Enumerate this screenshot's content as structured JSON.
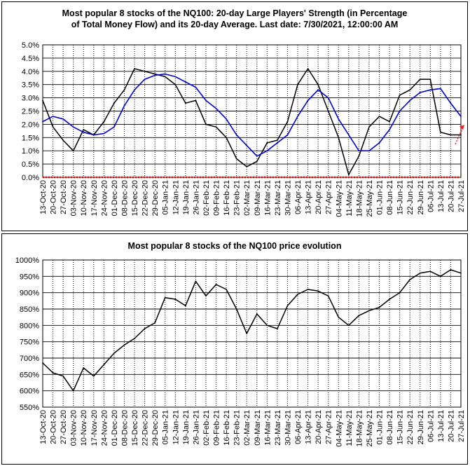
{
  "charts": [
    {
      "title_line1": "Most popular 8 stocks of the NQ100: 20-day Large Players' Strength (in Percentage",
      "title_line2": "of Total Money Flow) and its 20-day Average. Last date: 7/30/2021, 12:00:00 AM"
    },
    {
      "title": "Most popular 8 stocks of the NQ100 price evolution"
    }
  ],
  "colors": {
    "strength": "#000000",
    "average": "#0000cc",
    "zero_line": "#ee0000",
    "arrow": "#ee2222"
  },
  "chart_data": [
    {
      "type": "line",
      "title": "Most popular 8 stocks of the NQ100: 20-day Large Players' Strength (in Percentage of Total Money Flow) and its 20-day Average. Last date: 7/30/2021, 12:00:00 AM",
      "xlabel": "",
      "ylabel": "",
      "ylim": [
        0,
        5
      ],
      "y_ticks": [
        "0.0%",
        "0.5%",
        "1.0%",
        "1.5%",
        "2.0%",
        "2.5%",
        "3.0%",
        "3.5%",
        "4.0%",
        "4.5%",
        "5.0%"
      ],
      "y_unit": "%",
      "grid": true,
      "categories": [
        "13-Oct-20",
        "20-Oct-20",
        "27-Oct-20",
        "03-Nov-20",
        "10-Nov-20",
        "17-Nov-20",
        "24-Nov-20",
        "01-Dec-20",
        "08-Dec-20",
        "15-Dec-20",
        "22-Dec-20",
        "29-Dec-20",
        "05-Jan-21",
        "12-Jan-21",
        "19-Jan-21",
        "26-Jan-21",
        "02-Feb-21",
        "09-Feb-21",
        "16-Feb-21",
        "23-Feb-21",
        "02-Mar-21",
        "09-Mar-21",
        "16-Mar-21",
        "23-Mar-21",
        "30-Mar-21",
        "06-Apr-21",
        "13-Apr-21",
        "20-Apr-21",
        "27-Apr-21",
        "04-May-21",
        "11-May-21",
        "18-May-21",
        "25-May-21",
        "01-Jun-21",
        "08-Jun-21",
        "15-Jun-21",
        "22-Jun-21",
        "29-Jun-21",
        "06-Jul-21",
        "13-Jul-21",
        "20-Jul-21",
        "27-Jul-21"
      ],
      "tick_labels": [
        "13-Oct-20",
        "20-Oct-20",
        "27-Oct-20",
        "03-Nov-20",
        "10-Nov-20",
        "17-Nov-20",
        "24-Nov-20",
        "01-Dec-20",
        "08-Dec-20",
        "15-Dec-20",
        "22-Dec-20",
        "29-Dec-20",
        "05-Jan-21",
        "12-Jan-21",
        "19-Jan-21",
        "26-Jan-21",
        "02-Feb-21",
        "09-Feb-21",
        "16-Feb-21",
        "23-Feb-21",
        "02-Mar-21",
        "09-Mar-21",
        "16-Mar-21",
        "23-Mar-21",
        "30-Mar-21",
        "06-Apr-21",
        "13-Apr-21",
        "20-Apr-21",
        "27-Apr-21",
        "04-May-21",
        "11-May-21",
        "18-May-21",
        "25-May-21",
        "01-Jun-21",
        "08-Jun-21",
        "15-Jun-21",
        "22-Jun-21",
        "29-Jun-21",
        "06-Jul-21",
        "13-Jul-21",
        "20-Jul-21",
        "27-Jul-21"
      ],
      "series": [
        {
          "values": [
            2.9,
            1.9,
            1.4,
            1.0,
            1.8,
            1.6,
            2.1,
            2.8,
            3.3,
            4.1,
            4.0,
            3.9,
            3.8,
            3.5,
            2.8,
            2.9,
            2.0,
            1.9,
            1.5,
            0.7,
            0.4,
            0.6,
            1.3,
            1.4,
            2.1,
            3.5,
            4.1,
            3.5,
            2.5,
            1.5,
            0.1,
            0.8,
            1.9,
            2.3,
            2.1,
            3.1,
            3.3,
            3.7,
            3.7,
            1.7,
            1.6,
            1.6
          ]
        },
        {
          "values": [
            2.1,
            2.3,
            2.2,
            1.9,
            1.7,
            1.6,
            1.65,
            1.9,
            2.7,
            3.3,
            3.7,
            3.85,
            3.9,
            3.8,
            3.6,
            3.4,
            2.9,
            2.6,
            2.2,
            1.6,
            1.2,
            0.8,
            1.0,
            1.3,
            1.6,
            2.3,
            2.9,
            3.3,
            3.0,
            2.2,
            1.6,
            1.0,
            1.0,
            1.3,
            1.8,
            2.5,
            2.9,
            3.2,
            3.3,
            3.35,
            2.8,
            2.3
          ]
        }
      ]
    },
    {
      "type": "line",
      "title": "Most popular 8 stocks of the NQ100 price evolution",
      "xlabel": "",
      "ylabel": "",
      "ylim": [
        550,
        1000
      ],
      "y_ticks": [
        "550%",
        "600%",
        "650%",
        "700%",
        "750%",
        "800%",
        "850%",
        "900%",
        "950%",
        "1000%"
      ],
      "y_unit": "%",
      "grid": true,
      "categories": [
        "13-Oct-20",
        "20-Oct-20",
        "27-Oct-20",
        "03-Nov-20",
        "10-Nov-20",
        "17-Nov-20",
        "24-Nov-20",
        "01-Dec-20",
        "08-Dec-20",
        "15-Dec-20",
        "22-Dec-20",
        "29-Dec-20",
        "05-Jan-21",
        "12-Jan-21",
        "19-Jan-21",
        "26-Jan-21",
        "02-Feb-21",
        "09-Feb-21",
        "16-Feb-21",
        "23-Feb-21",
        "02-Mar-21",
        "09-Mar-21",
        "16-Mar-21",
        "23-Mar-21",
        "30-Mar-21",
        "06-Apr-21",
        "13-Apr-21",
        "20-Apr-21",
        "27-Apr-21",
        "04-May-21",
        "11-May-21",
        "18-May-21",
        "25-May-21",
        "01-Jun-21",
        "08-Jun-21",
        "15-Jun-21",
        "22-Jun-21",
        "29-Jun-21",
        "06-Jul-21",
        "13-Jul-21",
        "20-Jul-21",
        "27-Jul-21"
      ],
      "tick_labels": [
        "13-Oct-20",
        "20-Oct-20",
        "27-Oct-20",
        "03-Nov-20",
        "10-Nov-20",
        "17-Nov-20",
        "24-Nov-20",
        "01-Dec-20",
        "08-Dec-20",
        "15-Dec-20",
        "22-Dec-20",
        "29-Dec-20",
        "05-Jan-21",
        "12-Jan-21",
        "19-Jan-21",
        "26-Jan-21",
        "02-Feb-21",
        "09-Feb-21",
        "16-Feb-21",
        "23-Feb-21",
        "02-Mar-21",
        "09-Mar-21",
        "16-Mar-21",
        "23-Mar-21",
        "30-Mar-21",
        "06-Apr-21",
        "13-Apr-21",
        "20-Apr-21",
        "27-Apr-21",
        "04-May-21",
        "11-May-21",
        "18-May-21",
        "25-May-21",
        "01-Jun-21",
        "08-Jun-21",
        "15-Jun-21",
        "22-Jun-21",
        "29-Jun-21",
        "06-Jul-21",
        "13-Jul-21",
        "20-Jul-21",
        "27-Jul-21"
      ],
      "series": [
        {
          "values": [
            685,
            655,
            645,
            600,
            670,
            645,
            680,
            715,
            740,
            760,
            790,
            808,
            885,
            880,
            860,
            935,
            890,
            925,
            910,
            850,
            775,
            835,
            800,
            790,
            860,
            895,
            910,
            905,
            890,
            825,
            800,
            830,
            845,
            855,
            880,
            900,
            940,
            960,
            965,
            950,
            970,
            960
          ]
        }
      ]
    }
  ]
}
